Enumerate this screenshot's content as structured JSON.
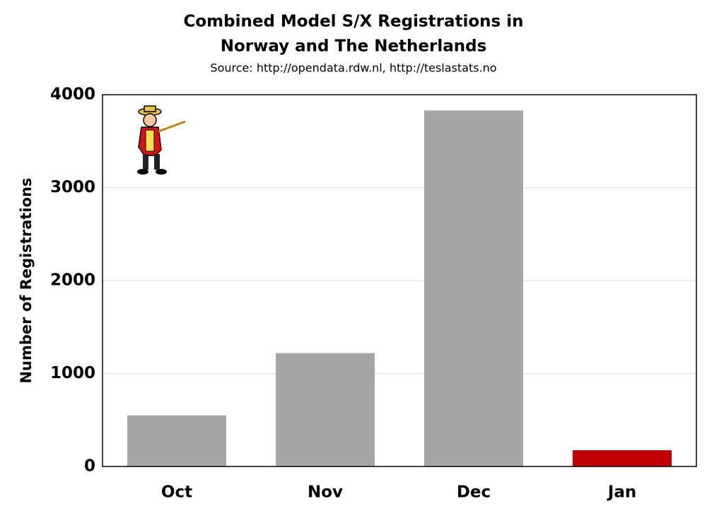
{
  "chart_data": {
    "type": "bar",
    "title": [
      "Combined Model S/X Registrations in",
      "Norway and The Netherlands"
    ],
    "subtitle": "Source: http://opendata.rdw.nl, http://teslastats.no",
    "y_label": "Number of Registrations",
    "categories": [
      "Oct",
      "Nov",
      "Dec",
      "Jan"
    ],
    "values": [
      550,
      1220,
      3830,
      175
    ],
    "colors": [
      "#a6a6a6",
      "#a6a6a6",
      "#a6a6a6",
      "#c00000"
    ],
    "ylim": [
      0,
      4000
    ],
    "yticks": [
      0,
      1000,
      2000,
      3000,
      4000
    ],
    "grid": true
  }
}
